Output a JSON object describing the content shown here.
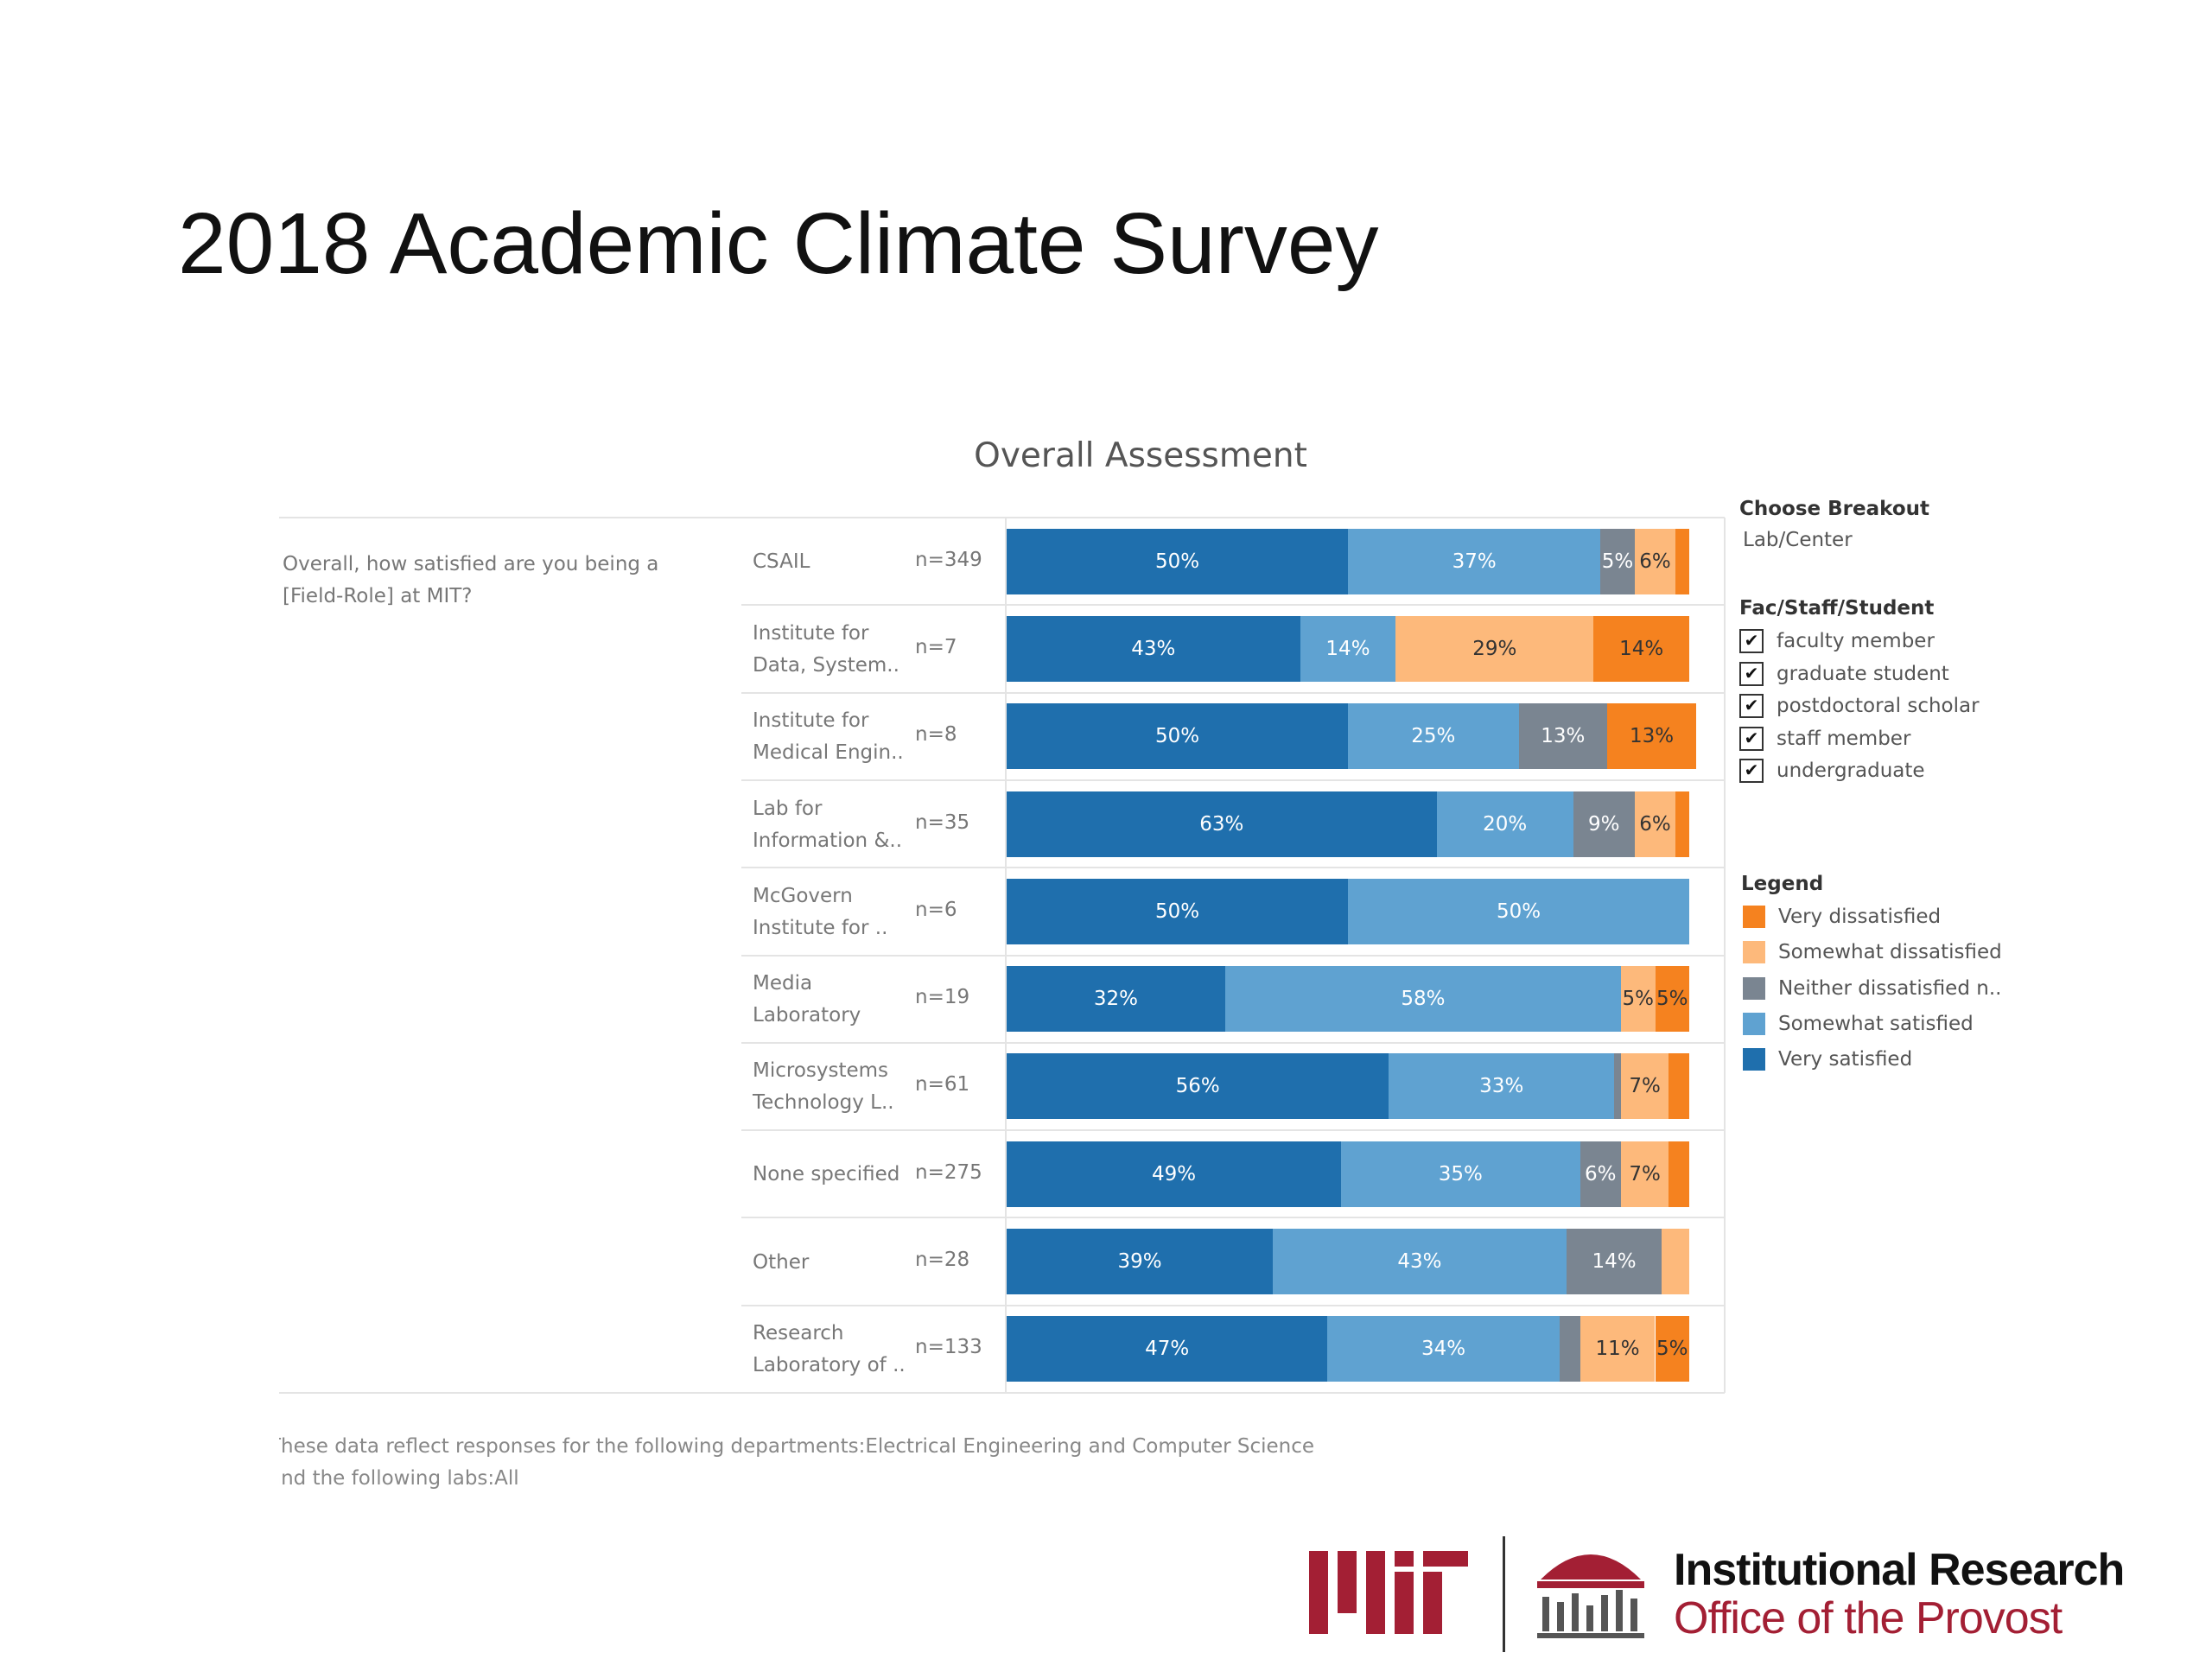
{
  "slide_title": "2018 Academic Climate Survey",
  "chart_data": {
    "type": "stacked-bar",
    "title": "Overall Assessment",
    "question": "Overall, how satisfied are you being a [Field-Role] at MIT?",
    "categories": [
      "CSAIL",
      "Institute for Data, System..",
      "Institute for Medical Engin..",
      "Lab for Information &..",
      "McGovern Institute for ..",
      "Media Laboratory",
      "Microsystems Technology L..",
      "None specified",
      "Other",
      "Research Laboratory of .."
    ],
    "n_labels": [
      "n=349",
      "n=7",
      "n=8",
      "n=35",
      "n=6",
      "n=19",
      "n=61",
      "n=275",
      "n=28",
      "n=133"
    ],
    "xlim": [
      0,
      100
    ],
    "series": [
      {
        "name": "Very satisfied",
        "color": "#1f6fad",
        "label_color": "#ffffff",
        "values": [
          50,
          43,
          50,
          63,
          50,
          32,
          56,
          49,
          39,
          47
        ],
        "value_labels": [
          "50%",
          "43%",
          "50%",
          "63%",
          "50%",
          "32%",
          "56%",
          "49%",
          "39%",
          "47%"
        ]
      },
      {
        "name": "Somewhat satisfied",
        "color": "#5fa2d1",
        "label_color": "#ffffff",
        "values": [
          37,
          14,
          25,
          20,
          50,
          58,
          33,
          35,
          43,
          34
        ],
        "value_labels": [
          "37%",
          "14%",
          "25%",
          "20%",
          "50%",
          "58%",
          "33%",
          "35%",
          "43%",
          "34%"
        ]
      },
      {
        "name": "Neither dissatisfied n..",
        "color": "#7a8591",
        "label_color": "#ffffff",
        "values": [
          5,
          0,
          13,
          9,
          0,
          0,
          1,
          6,
          14,
          3
        ],
        "value_labels": [
          "5%",
          null,
          "13%",
          "9%",
          null,
          null,
          null,
          "6%",
          "14%",
          null
        ]
      },
      {
        "name": "Somewhat dissatisfied",
        "color": "#fdb97b",
        "label_color": "#333333",
        "values": [
          6,
          29,
          0,
          6,
          0,
          5,
          7,
          7,
          4,
          11
        ],
        "value_labels": [
          "6%",
          "29%",
          null,
          "6%",
          null,
          "5%",
          "7%",
          "7%",
          null,
          "11%"
        ]
      },
      {
        "name": "Very dissatisfied",
        "color": "#f5821f",
        "label_color": "#333333",
        "values": [
          2,
          14,
          13,
          2,
          0,
          5,
          3,
          3,
          0,
          5
        ],
        "value_labels": [
          null,
          "14%",
          "13%",
          null,
          null,
          "5%",
          null,
          null,
          null,
          "5%"
        ]
      }
    ]
  },
  "filters": {
    "breakout_title": "Choose Breakout",
    "breakout_value": "Lab/Center",
    "group_title": "Fac/Staff/Student",
    "group_items": [
      "faculty member",
      "graduate student",
      "postdoctoral scholar",
      "staff member",
      "undergraduate"
    ],
    "legend_title": "Legend"
  },
  "footnote": [
    "These data reflect responses for the following departments:Electrical Engineering and Computer Science",
    "and the following labs:All"
  ],
  "logo": {
    "line1": "Institutional Research",
    "line2": "Office of the Provost"
  }
}
